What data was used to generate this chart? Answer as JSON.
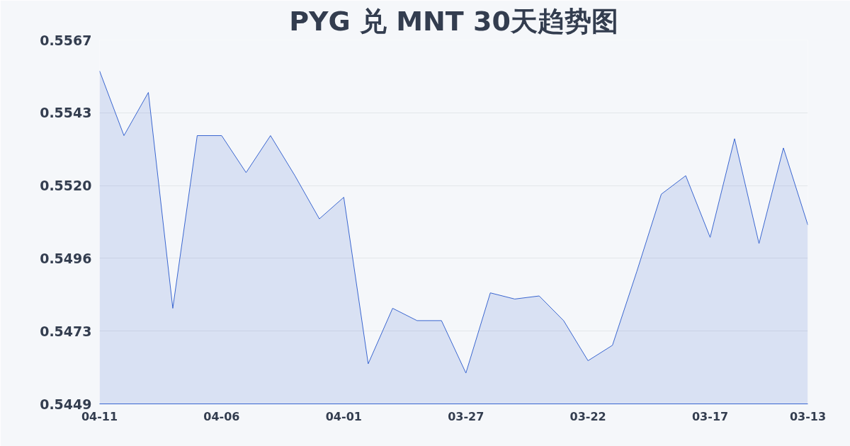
{
  "chart_data": {
    "type": "area",
    "title": "PYG 兑 MNT 30天趋势图",
    "categories": [
      "04-11",
      null,
      null,
      null,
      null,
      "04-06",
      null,
      null,
      null,
      null,
      "04-01",
      null,
      null,
      null,
      null,
      "03-27",
      null,
      null,
      null,
      null,
      "03-22",
      null,
      null,
      null,
      null,
      "03-17",
      null,
      null,
      null,
      "03-13"
    ],
    "series": [
      {
        "color": "#3a66d0",
        "values": [
          0.5557,
          0.5536,
          0.555,
          0.548,
          0.5536,
          0.5536,
          0.5524,
          0.5536,
          0.5523,
          0.5509,
          0.5516,
          0.5462,
          0.548,
          0.5476,
          0.5476,
          0.5459,
          0.5485,
          0.5483,
          0.5484,
          0.5476,
          0.5463,
          0.5468,
          0.5492,
          0.5517,
          0.5523,
          0.5503,
          0.5535,
          0.5501,
          0.5532,
          0.5507
        ]
      }
    ],
    "ylim": [
      0.5449,
      0.5567
    ],
    "yticks": [
      {
        "value": 0.5449,
        "label": "0.5449"
      },
      {
        "value": 0.54726,
        "label": "0.5473"
      },
      {
        "value": 0.54962,
        "label": "0.5496"
      },
      {
        "value": 0.55198,
        "label": "0.5520"
      },
      {
        "value": 0.55434,
        "label": "0.5543"
      },
      {
        "value": 0.5567,
        "label": "0.5567"
      }
    ],
    "grid": "y"
  }
}
